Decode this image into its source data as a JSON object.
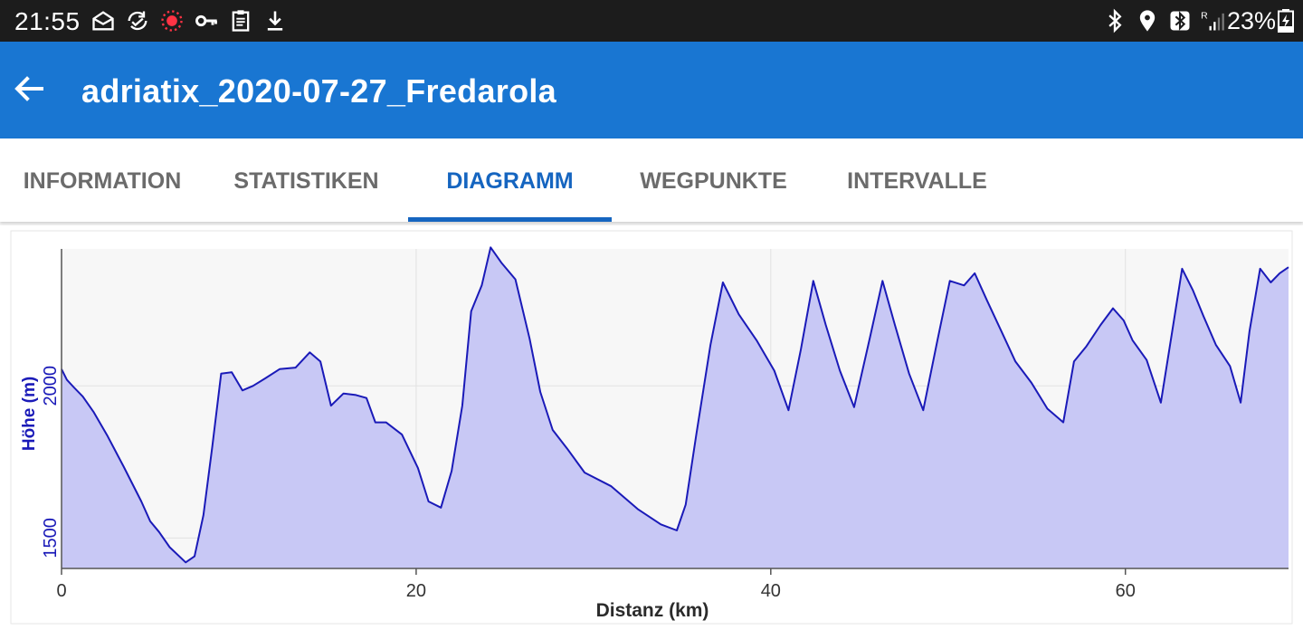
{
  "status_bar": {
    "time": "21:55",
    "battery_percent": "23%",
    "left_icons": [
      "mail-open-icon",
      "sync-icon",
      "recording-icon",
      "key-icon",
      "clipboard-icon",
      "download-icon"
    ],
    "right_icons": [
      "bluetooth-icon",
      "location-icon",
      "bluetooth-box-icon",
      "signal-icon",
      "battery-charging-icon"
    ]
  },
  "app_bar": {
    "title": "adriatix_2020-07-27_Fredarola",
    "back_icon": "arrow-left-icon"
  },
  "tabs": [
    {
      "label": "INFORMATION",
      "active": false
    },
    {
      "label": "STATISTIKEN",
      "active": false
    },
    {
      "label": "DIAGRAMM",
      "active": true
    },
    {
      "label": "WEGPUNKTE",
      "active": false
    },
    {
      "label": "INTERVALLE",
      "active": false
    }
  ],
  "colors": {
    "app_bar": "#1976d2",
    "tab_active": "#1565c0",
    "line": "#1a1ab8",
    "fill": "#c8c8f5"
  },
  "chart_data": {
    "type": "area",
    "xlabel": "Distanz (km)",
    "ylabel": "Höhe (m)",
    "xlim": [
      0,
      69.2
    ],
    "ylim": [
      1400,
      2450
    ],
    "x_ticks": [
      0,
      20,
      40,
      60
    ],
    "y_ticks": [
      1500,
      2000
    ],
    "grid": true,
    "legend": "none",
    "series": [
      {
        "x": [
          0,
          0.3,
          0.7,
          1.2,
          1.8,
          2.6,
          3.5,
          4.5,
          5.0,
          5.5,
          6.1,
          7.0,
          7.5,
          8.0,
          8.5,
          9.0,
          9.6,
          10.2,
          10.8,
          11.5,
          12.3,
          13.2,
          14.0,
          14.6,
          15.2,
          15.9,
          16.6,
          17.2,
          17.7,
          18.3,
          19.2,
          20.1,
          20.7,
          21.4,
          22.0,
          22.6,
          23.1,
          23.7,
          24.2,
          24.8,
          25.6,
          26.4,
          27.0,
          27.7,
          28.5,
          29.5,
          31.0,
          32.5,
          33.8,
          34.7,
          35.2,
          35.8,
          36.6,
          37.3,
          38.2,
          39.2,
          40.2,
          41.0,
          41.7,
          42.4,
          43.1,
          43.9,
          44.7,
          45.6,
          46.3,
          47.0,
          47.8,
          48.6,
          49.4,
          50.1,
          50.9,
          51.5,
          52.2,
          53.0,
          53.8,
          54.7,
          55.6,
          56.5,
          57.1,
          57.8,
          58.6,
          59.3,
          59.9,
          60.4,
          61.2,
          62.0,
          62.6,
          63.2,
          63.8,
          64.4,
          65.1,
          65.9,
          66.5,
          67.0,
          67.6,
          68.2,
          68.7,
          69.2
        ],
        "y": [
          2055,
          2020,
          1995,
          1965,
          1915,
          1835,
          1735,
          1620,
          1555,
          1520,
          1470,
          1420,
          1440,
          1575,
          1800,
          2040,
          2045,
          1985,
          2000,
          2025,
          2055,
          2060,
          2110,
          2080,
          1935,
          1975,
          1970,
          1960,
          1880,
          1880,
          1840,
          1730,
          1620,
          1600,
          1720,
          1935,
          2245,
          2330,
          2455,
          2405,
          2350,
          2155,
          1980,
          1855,
          1795,
          1715,
          1670,
          1595,
          1545,
          1525,
          1610,
          1840,
          2135,
          2340,
          2235,
          2150,
          2050,
          1920,
          2120,
          2345,
          2200,
          2050,
          1930,
          2160,
          2345,
          2200,
          2040,
          1920,
          2150,
          2345,
          2330,
          2370,
          2280,
          2180,
          2080,
          2010,
          1925,
          1880,
          2080,
          2130,
          2200,
          2255,
          2215,
          2150,
          2085,
          1945,
          2165,
          2385,
          2315,
          2230,
          2135,
          2065,
          1945,
          2180,
          2385,
          2340,
          2370,
          2390
        ]
      }
    ]
  }
}
